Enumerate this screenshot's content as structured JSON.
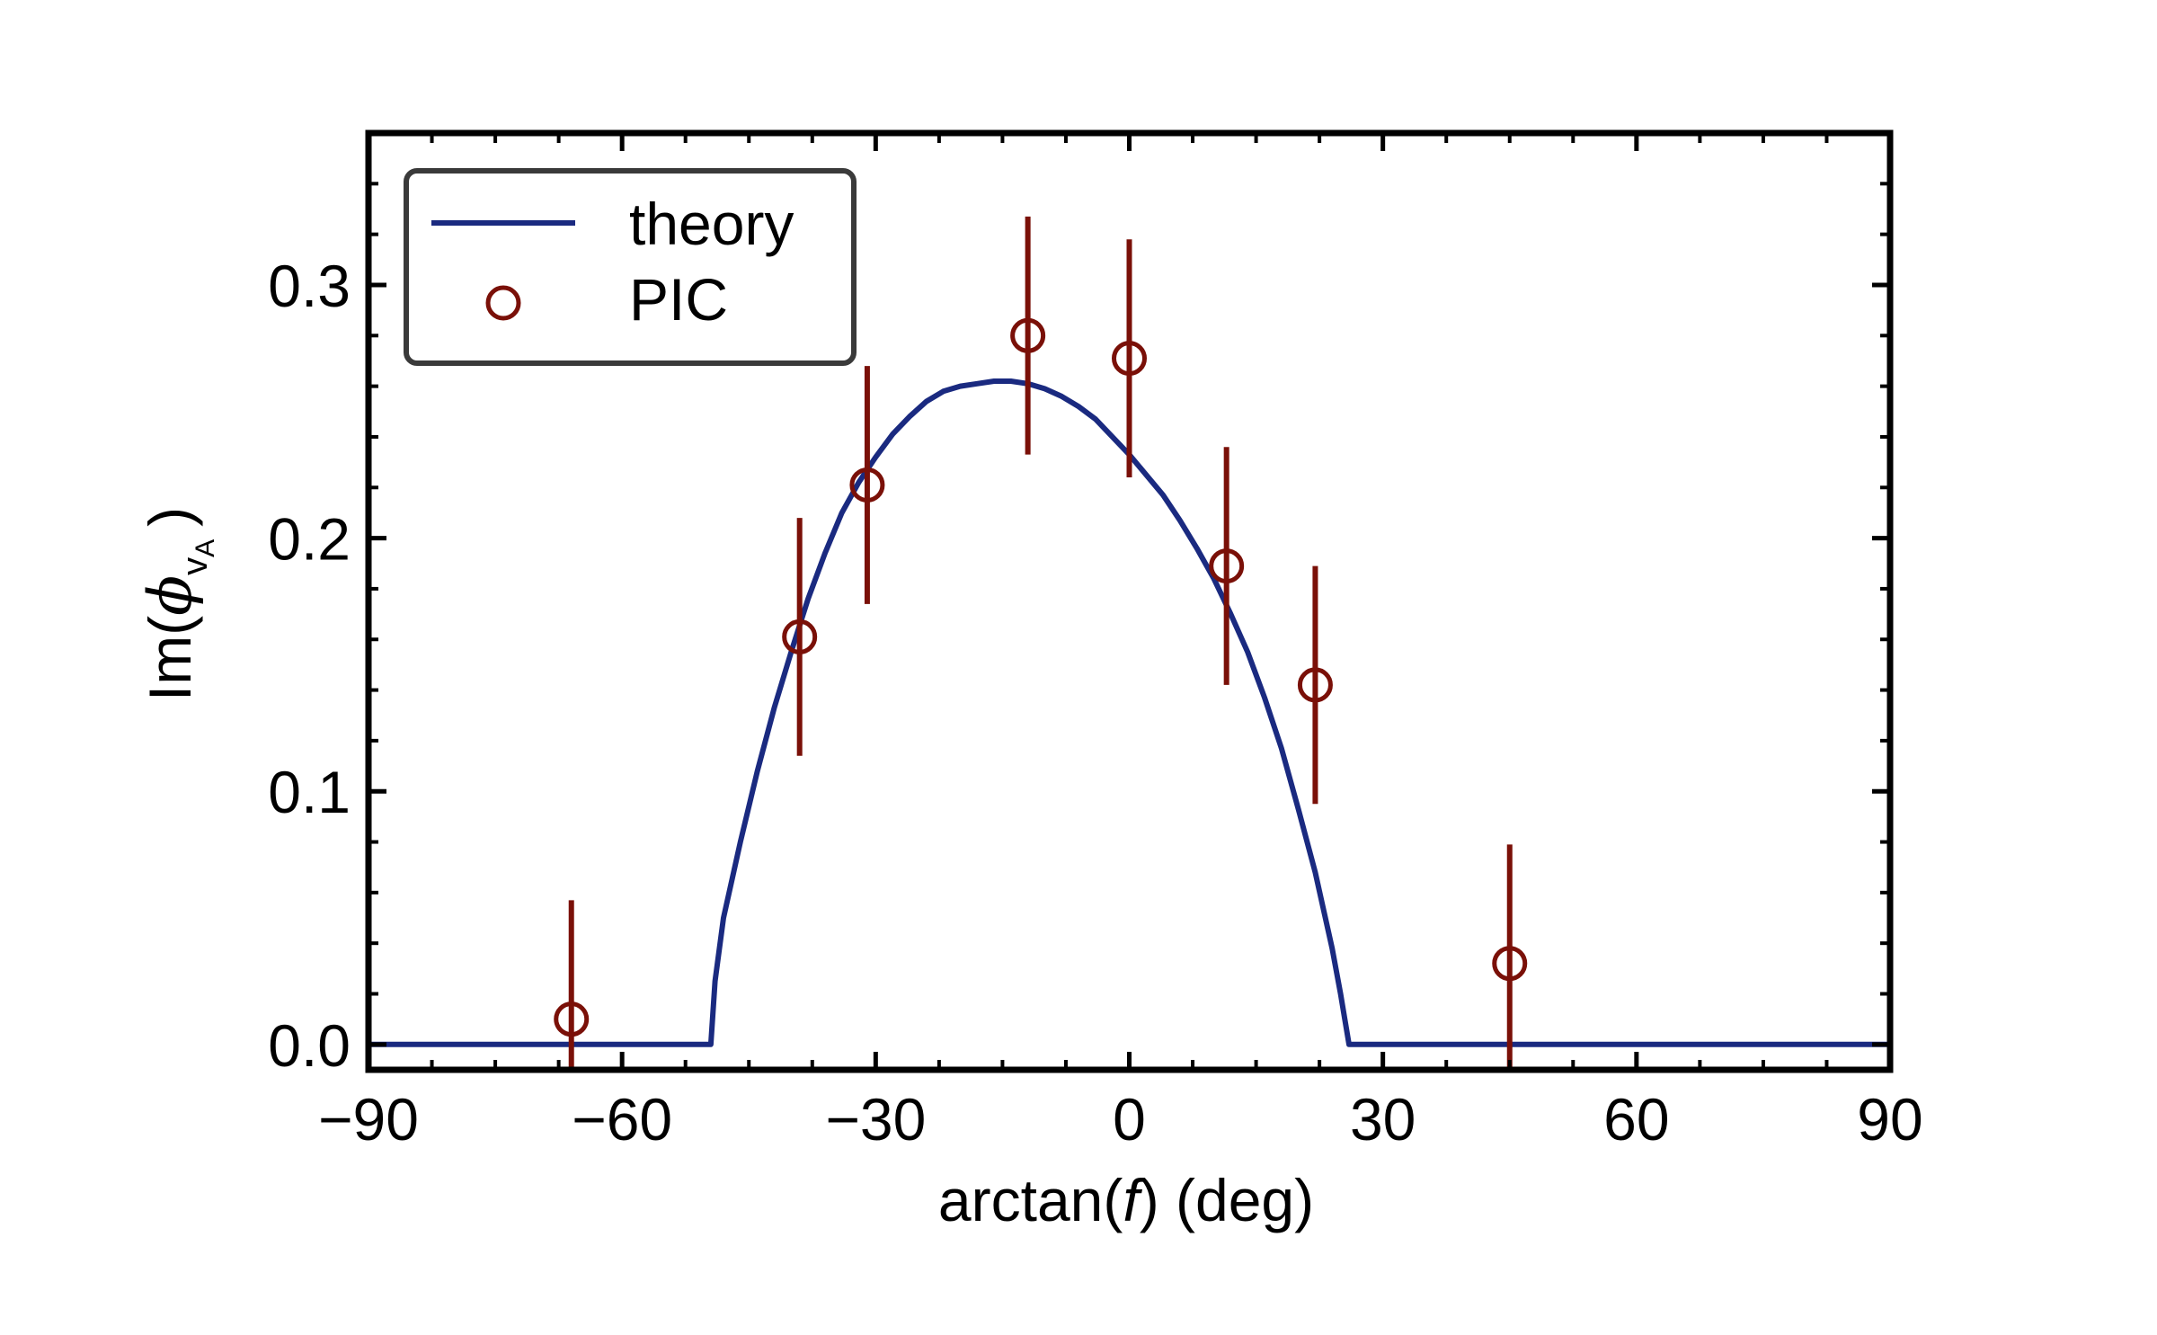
{
  "chart_data": {
    "type": "scatter",
    "xlabel_prefix": "arctan(",
    "xlabel_var": "f",
    "xlabel_suffix": ") (deg)",
    "ylabel_prefix": "Im(",
    "ylabel_var": "ϕ",
    "ylabel_sub": "v",
    "ylabel_subsub": "A",
    "ylabel_suffix": ")",
    "xlim": [
      -90,
      90
    ],
    "ylim": [
      -0.01,
      0.36
    ],
    "x_ticks": [
      -90,
      -60,
      -30,
      0,
      30,
      60,
      90
    ],
    "x_tick_labels": [
      "−90",
      "−60",
      "−30",
      "0",
      "30",
      "60",
      "90"
    ],
    "y_ticks": [
      0.0,
      0.1,
      0.2,
      0.3
    ],
    "y_tick_labels": [
      "0.0",
      "0.1",
      "0.2",
      "0.3"
    ],
    "x_minor_step": 7.5,
    "y_minor_step": 0.02,
    "legend_position": "top-left",
    "grid": false,
    "series": [
      {
        "name": "theory",
        "kind": "line",
        "color": "#1a2a80",
        "cutoff_low": -49.5,
        "cutoff_high": 26,
        "peak": 0.262,
        "peak_x": -14,
        "x": [
          -90,
          -49.5,
          -49,
          -48,
          -46,
          -44,
          -42,
          -40,
          -38,
          -36,
          -34,
          -32,
          -30,
          -28,
          -26,
          -24,
          -22,
          -20,
          -18,
          -16,
          -14,
          -12,
          -10,
          -8,
          -6,
          -4,
          -2,
          0,
          2,
          4,
          6,
          8,
          10,
          12,
          14,
          16,
          18,
          20,
          22,
          23,
          24,
          25,
          25.5,
          26,
          90
        ],
        "y": [
          0,
          0,
          0.025,
          0.05,
          0.08,
          0.108,
          0.133,
          0.155,
          0.176,
          0.194,
          0.21,
          0.222,
          0.232,
          0.241,
          0.248,
          0.254,
          0.258,
          0.26,
          0.261,
          0.262,
          0.262,
          0.261,
          0.259,
          0.256,
          0.252,
          0.247,
          0.24,
          0.233,
          0.225,
          0.217,
          0.207,
          0.196,
          0.184,
          0.17,
          0.155,
          0.137,
          0.117,
          0.093,
          0.068,
          0.053,
          0.038,
          0.02,
          0.01,
          0,
          0
        ]
      },
      {
        "name": "PIC",
        "kind": "errorbar",
        "color": "#7a1008",
        "x": [
          -66,
          -39,
          -31,
          -12,
          0,
          11.5,
          22,
          45
        ],
        "y": [
          0.01,
          0.161,
          0.221,
          0.28,
          0.271,
          0.189,
          0.142,
          0.032
        ],
        "yerr": [
          0.047,
          0.047,
          0.047,
          0.047,
          0.047,
          0.047,
          0.047,
          0.047
        ]
      }
    ]
  }
}
